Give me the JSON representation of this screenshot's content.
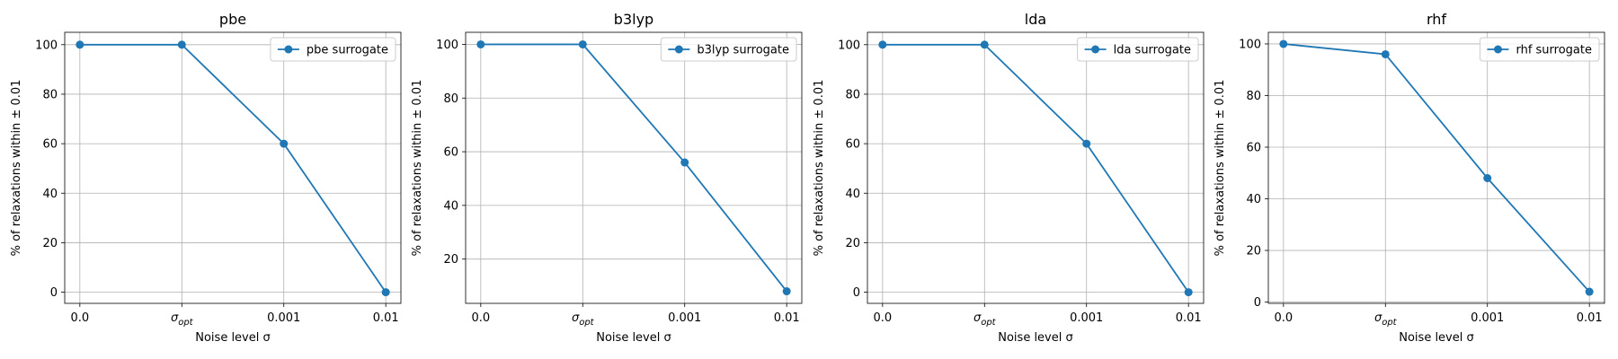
{
  "chart_data": [
    {
      "type": "line",
      "title": "pbe",
      "xlabel": "Noise level σ",
      "ylabel": "% of relaxations within ± 0.01",
      "categories": [
        "0.0",
        "σ_opt",
        "0.001",
        "0.01"
      ],
      "yticks": [
        0,
        20,
        40,
        60,
        80,
        100
      ],
      "ylim": [
        -4.5,
        105
      ],
      "grid": true,
      "legend_position": "top-right",
      "series": [
        {
          "name": "pbe surrogate",
          "values": [
            100,
            100,
            60,
            0
          ],
          "color": "#1f77b4"
        }
      ]
    },
    {
      "type": "line",
      "title": "b3lyp",
      "xlabel": "Noise level σ",
      "ylabel": "% of relaxations within ± 0.01",
      "categories": [
        "0.0",
        "σ_opt",
        "0.001",
        "0.01"
      ],
      "yticks": [
        20,
        40,
        60,
        80,
        100
      ],
      "ylim": [
        3.5,
        104.5
      ],
      "grid": true,
      "legend_position": "top-right",
      "series": [
        {
          "name": "b3lyp surrogate",
          "values": [
            100,
            100,
            56,
            8
          ],
          "color": "#1f77b4"
        }
      ]
    },
    {
      "type": "line",
      "title": "lda",
      "xlabel": "Noise level σ",
      "ylabel": "% of relaxations within ± 0.01",
      "categories": [
        "0.0",
        "σ_opt",
        "0.001",
        "0.01"
      ],
      "yticks": [
        0,
        20,
        40,
        60,
        80,
        100
      ],
      "ylim": [
        -4.5,
        105
      ],
      "grid": true,
      "legend_position": "top-right",
      "series": [
        {
          "name": "lda surrogate",
          "values": [
            100,
            100,
            60,
            0
          ],
          "color": "#1f77b4"
        }
      ]
    },
    {
      "type": "line",
      "title": "rhf",
      "xlabel": "Noise level σ",
      "ylabel": "% of relaxations within ± 0.01",
      "categories": [
        "0.0",
        "σ_opt",
        "0.001",
        "0.01"
      ],
      "yticks": [
        0,
        20,
        40,
        60,
        80,
        100
      ],
      "ylim": [
        -0.5,
        104.5
      ],
      "grid": true,
      "legend_position": "top-right",
      "series": [
        {
          "name": "rhf surrogate",
          "values": [
            100,
            96,
            48,
            4
          ],
          "color": "#1f77b4"
        }
      ]
    }
  ]
}
